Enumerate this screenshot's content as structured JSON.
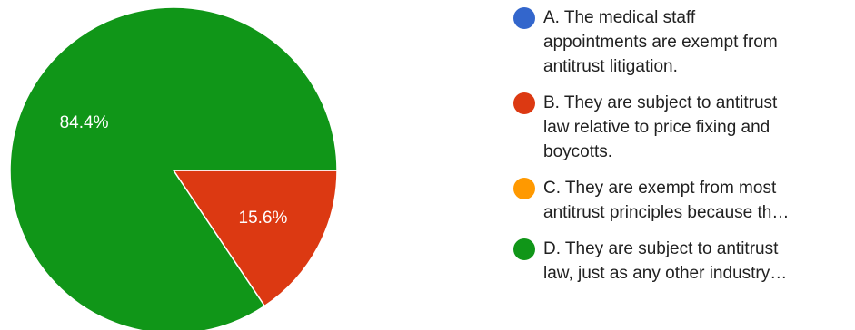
{
  "chart_data": {
    "type": "pie",
    "slices": [
      {
        "label": "A. The medical staff appointments are exempt from antitrust litigation.",
        "display": [
          "A. The medical staff",
          "appointments are exempt from",
          "antitrust litigation."
        ],
        "value": 0,
        "percent_label": "",
        "color": "#3366cc"
      },
      {
        "label": "B. They are subject to antitrust law relative to price fixing and boycotts.",
        "display": [
          "B. They are subject to antitrust",
          "law relative to price fixing and",
          "boycotts."
        ],
        "value": 15.6,
        "percent_label": "15.6%",
        "color": "#dc3912"
      },
      {
        "label": "C. They are exempt from most antitrust principles because th…",
        "display": [
          "C. They are exempt from most",
          "antitrust principles because th…"
        ],
        "value": 0,
        "percent_label": "",
        "color": "#ff9900"
      },
      {
        "label": "D. They are subject to antitrust law, just as any other industry…",
        "display": [
          "D. They are subject to antitrust",
          "law, just as any other industry…"
        ],
        "value": 84.4,
        "percent_label": "84.4%",
        "color": "#109618"
      }
    ],
    "start_angle_deg": 90,
    "direction": "clockwise",
    "legend_position": "right"
  }
}
